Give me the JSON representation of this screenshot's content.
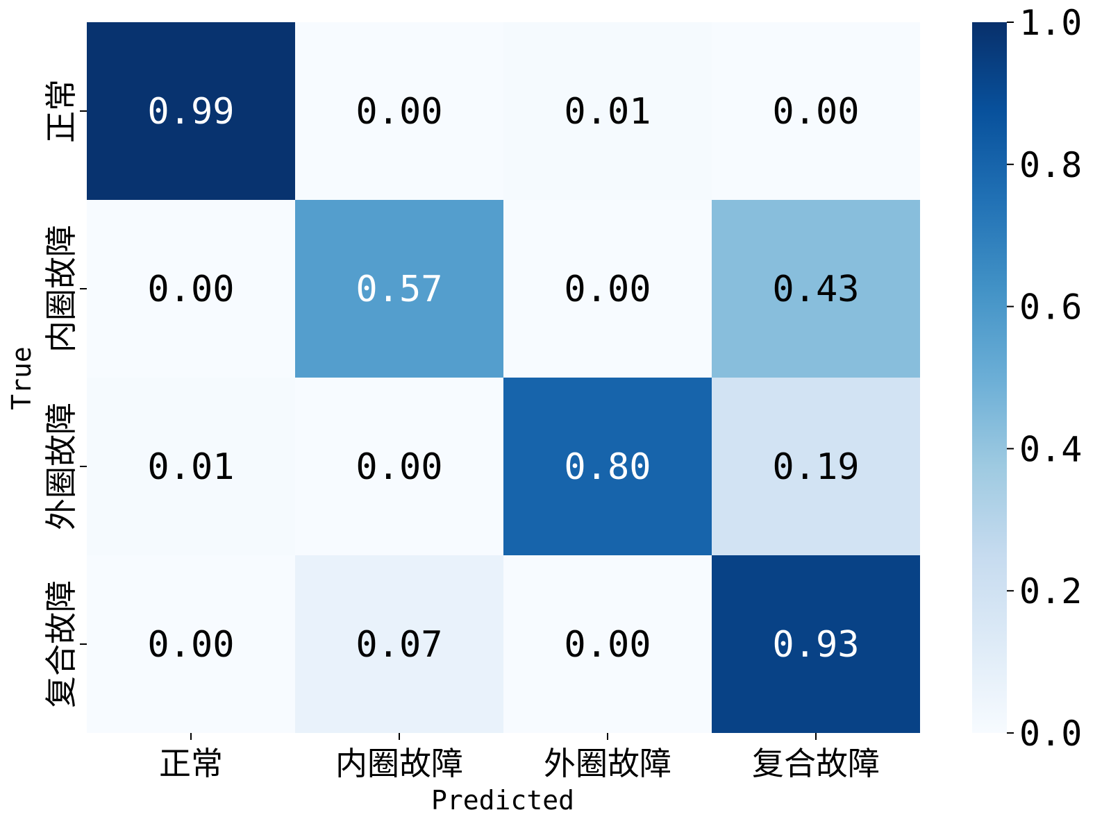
{
  "chart_data": {
    "type": "heatmap",
    "title": "",
    "xlabel": "Predicted",
    "ylabel": "True",
    "x_categories": [
      "正常",
      "内圈故障",
      "外圈故障",
      "复合故障"
    ],
    "y_categories": [
      "正常",
      "内圈故障",
      "外圈故障",
      "复合故障"
    ],
    "values": [
      [
        0.99,
        0.0,
        0.01,
        0.0
      ],
      [
        0.0,
        0.57,
        0.0,
        0.43
      ],
      [
        0.01,
        0.0,
        0.8,
        0.19
      ],
      [
        0.0,
        0.07,
        0.0,
        0.93
      ]
    ],
    "value_format": "0.00",
    "colormap": "Blues",
    "colorbar": {
      "range": [
        0.0,
        1.0
      ],
      "ticks": [
        "0.0",
        "0.2",
        "0.4",
        "0.6",
        "0.8",
        "1.0"
      ]
    },
    "grid": false
  }
}
